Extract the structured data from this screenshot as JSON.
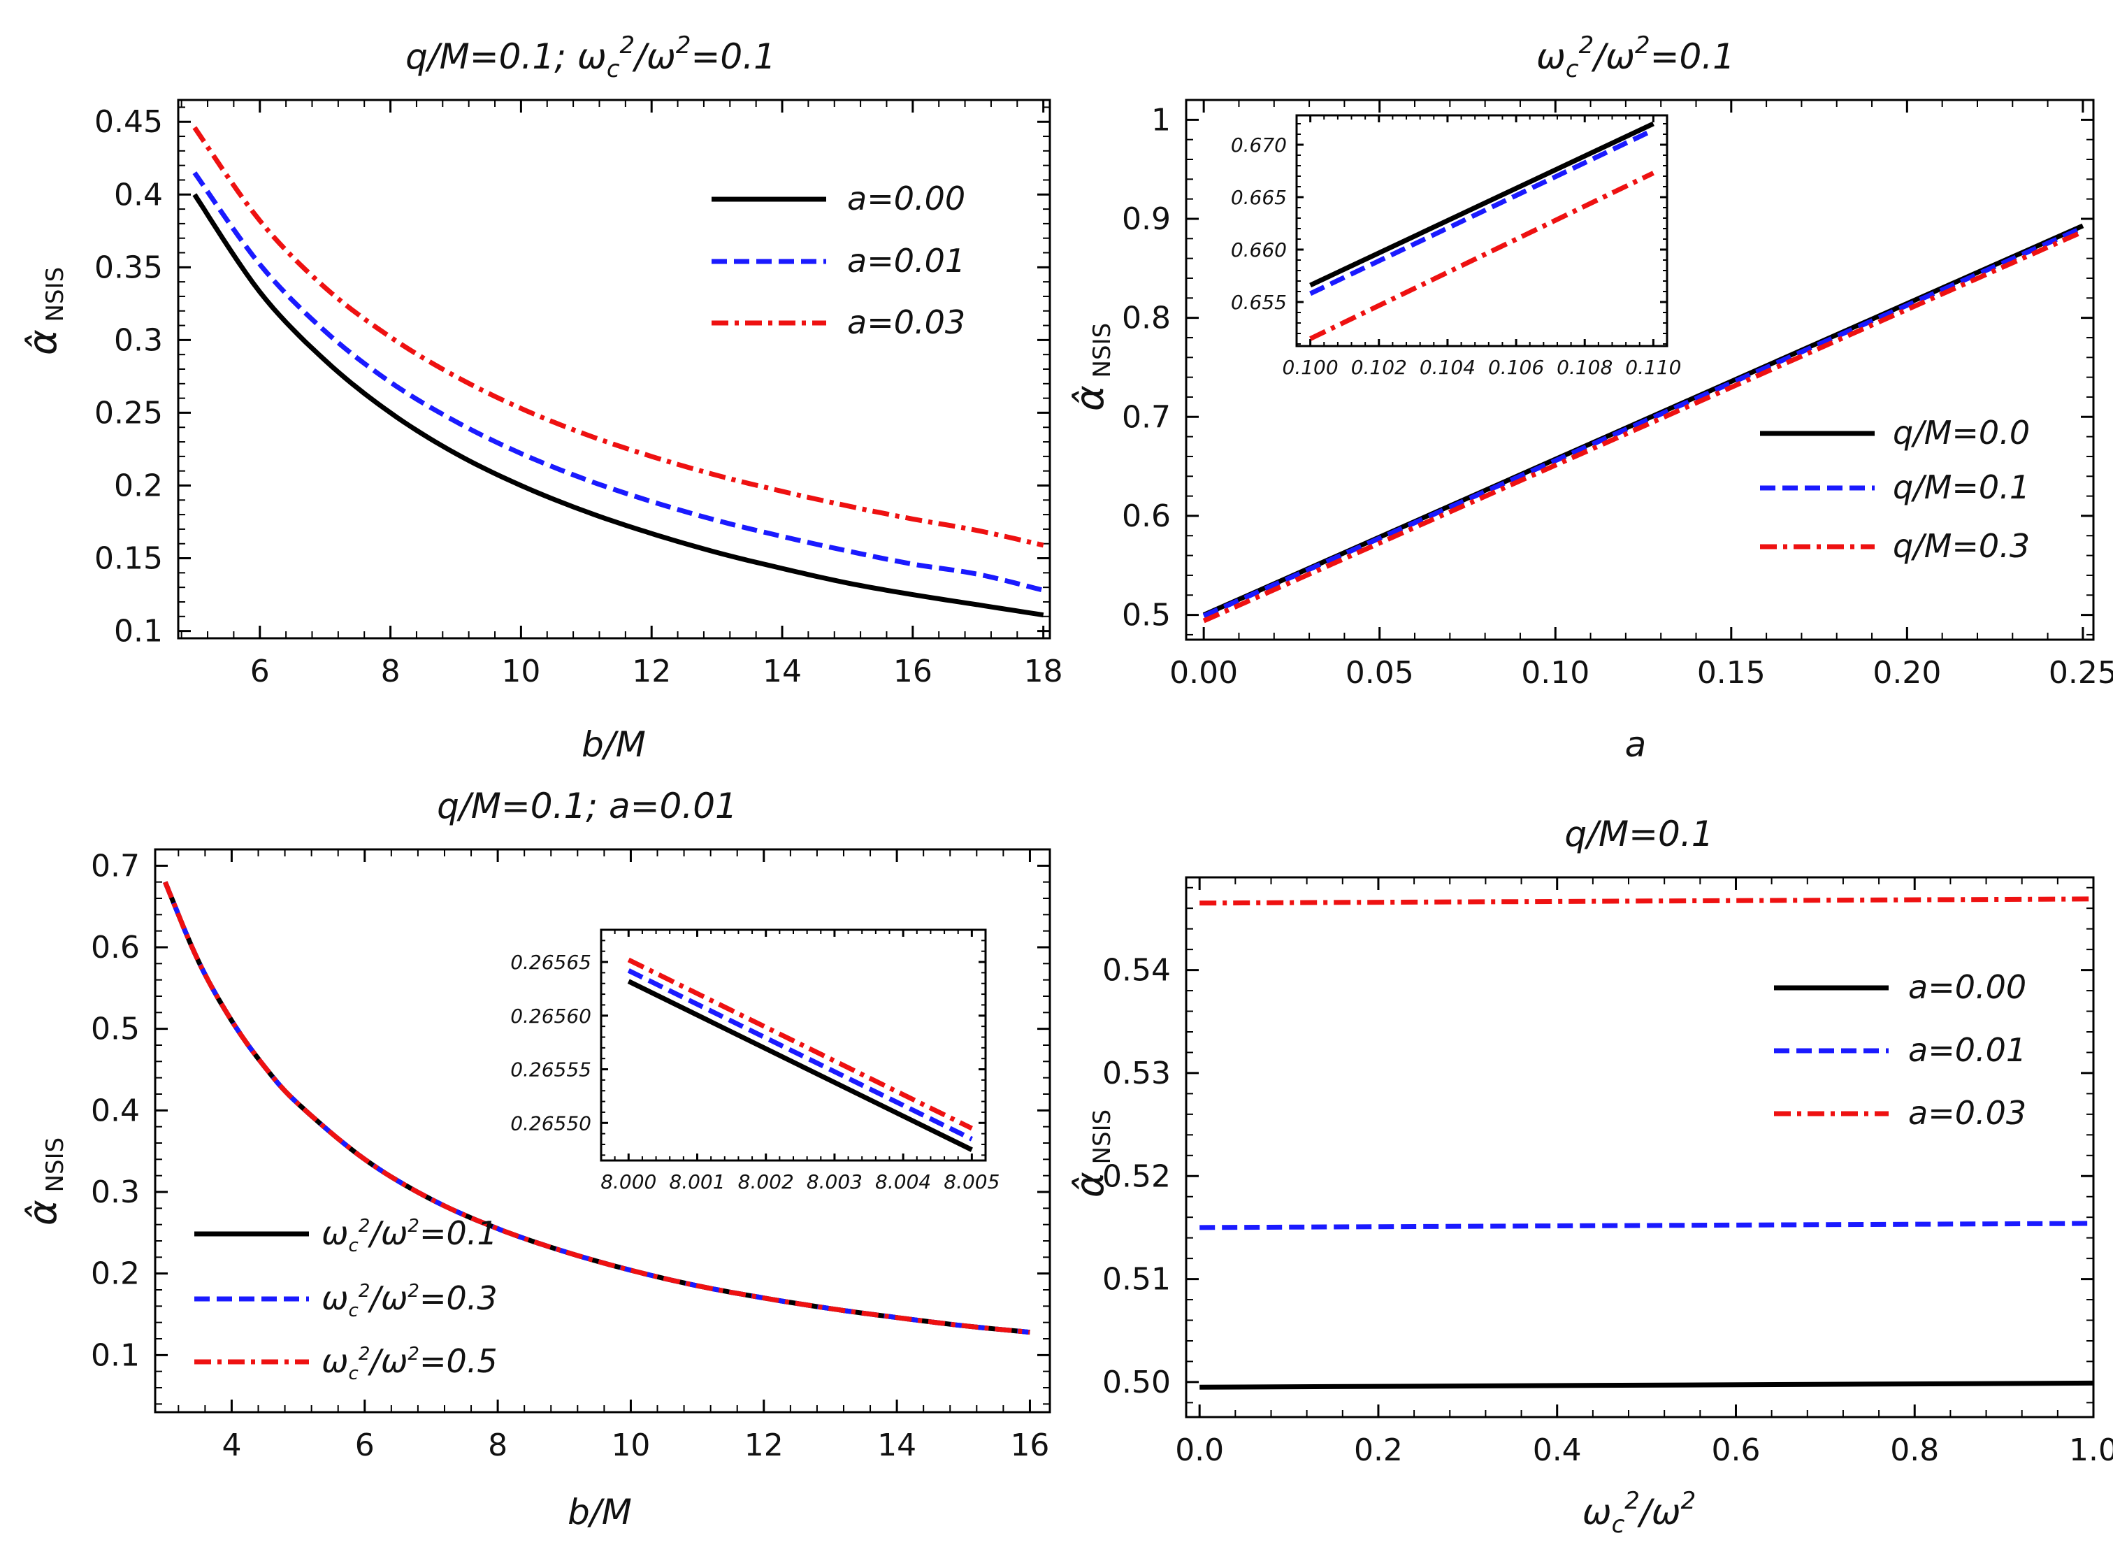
{
  "colors": {
    "black": "#000000",
    "blue": "#1a1aff",
    "red": "#ee1111"
  },
  "chart_data": [
    {
      "type": "line",
      "title": "q/M=0.1;     ωc²/ω²=0.1",
      "xlabel": "b/M",
      "ylabel": "α̂ NSIS",
      "xlim": [
        4.75,
        18.1
      ],
      "ylim": [
        0.095,
        0.465
      ],
      "xticks": [
        6,
        8,
        10,
        12,
        14,
        16,
        18
      ],
      "yticks": [
        0.1,
        0.15,
        0.2,
        0.25,
        0.3,
        0.35,
        0.4,
        0.45
      ],
      "series": [
        {
          "name": "a=0.00",
          "style": "solid",
          "color": "black",
          "x": [
            5,
            6,
            7,
            8,
            9,
            10,
            11,
            12,
            13,
            14,
            15,
            16,
            17,
            18
          ],
          "y": [
            0.4,
            0.333,
            0.286,
            0.25,
            0.222,
            0.2,
            0.182,
            0.167,
            0.154,
            0.143,
            0.133,
            0.125,
            0.118,
            0.111
          ]
        },
        {
          "name": "a=0.01",
          "style": "dashed",
          "color": "blue",
          "x": [
            5,
            6,
            7,
            8,
            9,
            10,
            11,
            12,
            13,
            14,
            15,
            16,
            17,
            18
          ],
          "y": [
            0.415,
            0.352,
            0.306,
            0.271,
            0.244,
            0.222,
            0.204,
            0.189,
            0.176,
            0.165,
            0.155,
            0.146,
            0.139,
            0.128
          ]
        },
        {
          "name": "a=0.03",
          "style": "dashdot",
          "color": "red",
          "x": [
            5,
            6,
            7,
            8,
            9,
            10,
            11,
            12,
            13,
            14,
            15,
            16,
            17,
            18
          ],
          "y": [
            0.446,
            0.382,
            0.336,
            0.302,
            0.275,
            0.253,
            0.235,
            0.22,
            0.207,
            0.196,
            0.186,
            0.177,
            0.169,
            0.159
          ]
        }
      ]
    },
    {
      "type": "line",
      "title": "ωc²/ω²=0.1",
      "xlabel": "a",
      "ylabel": "α̂ NSIS",
      "xlim": [
        -0.005,
        0.253
      ],
      "ylim": [
        0.475,
        1.02
      ],
      "xticks": [
        0.0,
        0.05,
        0.1,
        0.15,
        0.2,
        0.25
      ],
      "xticklabels": [
        "0.00",
        "0.05",
        "0.10",
        "0.15",
        "0.20",
        "0.25"
      ],
      "yticks": [
        0.5,
        0.6,
        0.7,
        0.8,
        0.9,
        1.0
      ],
      "series": [
        {
          "name": "q/M=0.0",
          "style": "solid",
          "color": "black",
          "x": [
            0,
            0.25
          ],
          "y": [
            0.5,
            0.893
          ]
        },
        {
          "name": "q/M=0.1",
          "style": "dashed",
          "color": "blue",
          "x": [
            0,
            0.25
          ],
          "y": [
            0.499,
            0.891
          ]
        },
        {
          "name": "q/M=0.3",
          "style": "dashdot",
          "color": "red",
          "x": [
            0,
            0.25
          ],
          "y": [
            0.494,
            0.887
          ]
        }
      ],
      "inset": {
        "xlim": [
          0.0996,
          0.1104
        ],
        "ylim": [
          0.6508,
          0.6728
        ],
        "xticks": [
          0.1,
          0.102,
          0.104,
          0.106,
          0.108,
          0.11
        ],
        "xticklabels": [
          "0.100",
          "0.102",
          "0.104",
          "0.106",
          "0.108",
          "0.110"
        ],
        "yticks": [
          0.655,
          0.66,
          0.665,
          0.67
        ],
        "yticklabels": [
          "0.655",
          "0.660",
          "0.665",
          "0.670"
        ],
        "series": [
          {
            "name": "q/M=0.0",
            "style": "solid",
            "color": "black",
            "x": [
              0.1,
              0.11
            ],
            "y": [
              0.6566,
              0.672
            ]
          },
          {
            "name": "q/M=0.1",
            "style": "dashed",
            "color": "blue",
            "x": [
              0.1,
              0.11
            ],
            "y": [
              0.6558,
              0.6714
            ]
          },
          {
            "name": "q/M=0.3",
            "style": "dashdot",
            "color": "red",
            "x": [
              0.1,
              0.11
            ],
            "y": [
              0.6515,
              0.6673
            ]
          }
        ]
      }
    },
    {
      "type": "line",
      "title": "q/M=0.1;    a=0.01",
      "xlabel": "b/M",
      "ylabel": "α̂ NSIS",
      "xlim": [
        2.85,
        16.3
      ],
      "ylim": [
        0.03,
        0.72
      ],
      "xticks": [
        4,
        6,
        8,
        10,
        12,
        14,
        16
      ],
      "yticks": [
        0.1,
        0.2,
        0.3,
        0.4,
        0.5,
        0.6,
        0.7
      ],
      "series": [
        {
          "name": "ωc²/ω²=0.1",
          "style": "solid",
          "color": "black",
          "x": [
            3,
            3.5,
            4,
            4.5,
            5,
            6,
            7,
            8,
            9,
            10,
            11,
            12,
            13,
            14,
            15,
            16
          ],
          "y": [
            0.68,
            0.583,
            0.51,
            0.453,
            0.408,
            0.34,
            0.291,
            0.255,
            0.227,
            0.204,
            0.185,
            0.17,
            0.157,
            0.146,
            0.136,
            0.128
          ]
        },
        {
          "name": "ωc²/ω²=0.3",
          "style": "dashed",
          "color": "blue",
          "x": [
            3,
            3.5,
            4,
            4.5,
            5,
            6,
            7,
            8,
            9,
            10,
            11,
            12,
            13,
            14,
            15,
            16
          ],
          "y": [
            0.68,
            0.583,
            0.51,
            0.453,
            0.408,
            0.34,
            0.291,
            0.255,
            0.227,
            0.204,
            0.185,
            0.17,
            0.157,
            0.146,
            0.136,
            0.128
          ]
        },
        {
          "name": "ωc²/ω²=0.5",
          "style": "dashdot",
          "color": "red",
          "x": [
            3,
            3.5,
            4,
            4.5,
            5,
            6,
            7,
            8,
            9,
            10,
            11,
            12,
            13,
            14,
            15,
            16
          ],
          "y": [
            0.68,
            0.583,
            0.51,
            0.453,
            0.408,
            0.34,
            0.291,
            0.255,
            0.227,
            0.204,
            0.185,
            0.17,
            0.157,
            0.146,
            0.136,
            0.128
          ]
        }
      ],
      "inset": {
        "xlim": [
          7.9996,
          8.0052
        ],
        "ylim": [
          0.265465,
          0.26568
        ],
        "xticks": [
          8.0,
          8.001,
          8.002,
          8.003,
          8.004,
          8.005
        ],
        "xticklabels": [
          "8.000",
          "8.001",
          "8.002",
          "8.003",
          "8.004",
          "8.005"
        ],
        "yticks": [
          0.2655,
          0.26555,
          0.2656,
          0.26565
        ],
        "yticklabels": [
          "0.26550",
          "0.26555",
          "0.26560",
          "0.26565"
        ],
        "series": [
          {
            "name": "ωc²/ω²=0.1",
            "style": "solid",
            "color": "black",
            "x": [
              8.0,
              8.005
            ],
            "y": [
              0.265632,
              0.265475
            ]
          },
          {
            "name": "ωc²/ω²=0.3",
            "style": "dashed",
            "color": "blue",
            "x": [
              8.0,
              8.005
            ],
            "y": [
              0.265642,
              0.265485
            ]
          },
          {
            "name": "ωc²/ω²=0.5",
            "style": "dashdot",
            "color": "red",
            "x": [
              8.0,
              8.005
            ],
            "y": [
              0.265652,
              0.265495
            ]
          }
        ]
      }
    },
    {
      "type": "line",
      "title": "q/M=0.1",
      "xlabel": "ωc²/ω²",
      "ylabel": "α̂ NSIS",
      "xlim": [
        -0.015,
        1.0
      ],
      "ylim": [
        0.4966,
        0.549
      ],
      "xticks": [
        0.0,
        0.2,
        0.4,
        0.6,
        0.8,
        1.0
      ],
      "xticklabels": [
        "0.0",
        "0.2",
        "0.4",
        "0.6",
        "0.8",
        "1.0"
      ],
      "yticks": [
        0.5,
        0.51,
        0.52,
        0.53,
        0.54
      ],
      "yticklabels": [
        "0.50",
        "0.51",
        "0.52",
        "0.53",
        "0.54"
      ],
      "series": [
        {
          "name": "a=0.00",
          "style": "solid",
          "color": "black",
          "x": [
            0,
            1
          ],
          "y": [
            0.4995,
            0.4999
          ]
        },
        {
          "name": "a=0.01",
          "style": "dashed",
          "color": "blue",
          "x": [
            0,
            1
          ],
          "y": [
            0.515,
            0.5154
          ]
        },
        {
          "name": "a=0.03",
          "style": "dashdot",
          "color": "red",
          "x": [
            0,
            1
          ],
          "y": [
            0.5465,
            0.5469
          ]
        }
      ]
    }
  ]
}
